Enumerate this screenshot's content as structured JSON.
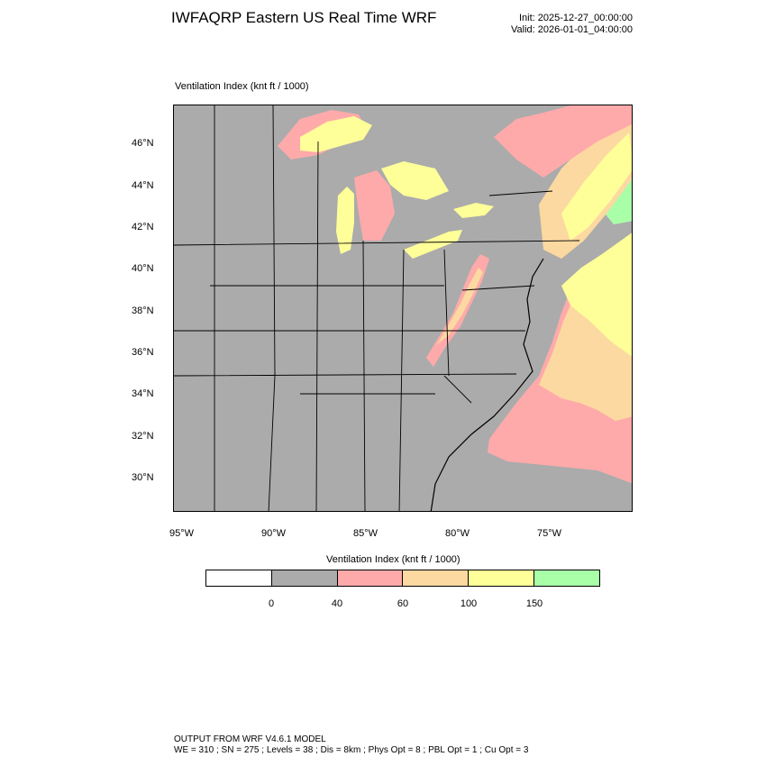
{
  "title": "IWFAQRP Eastern US Real Time WRF",
  "init": "Init: 2025-12-27_00:00:00",
  "valid": "Valid: 2026-01-01_04:00:00",
  "field_label": "Ventilation Index   (knt ft / 1000)",
  "lat_labels": [
    "46°N",
    "44°N",
    "42°N",
    "40°N",
    "38°N",
    "36°N",
    "34°N",
    "32°N",
    "30°N"
  ],
  "lon_labels": [
    "95°W",
    "90°W",
    "85°W",
    "80°W",
    "75°W"
  ],
  "colorbar": {
    "title": "Ventilation Index  (knt ft / 1000)",
    "colors": [
      "#ffffff",
      "#ababab",
      "#ffaaaa",
      "#fcd9a1",
      "#ffff99",
      "#a8ffa8"
    ],
    "ticks": [
      "0",
      "40",
      "60",
      "100",
      "150"
    ]
  },
  "colors": {
    "land_low": "#ababab",
    "pink": "#ffaaaa",
    "orange": "#fcd9a1",
    "yellow": "#ffff99",
    "green": "#a8ffa8"
  },
  "footer": {
    "line1": "OUTPUT FROM WRF V4.6.1 MODEL",
    "line2": "WE = 310 ; SN = 275 ; Levels = 38 ; Dis = 8km ; Phys Opt = 8 ; PBL Opt = 1 ; Cu Opt = 3"
  }
}
